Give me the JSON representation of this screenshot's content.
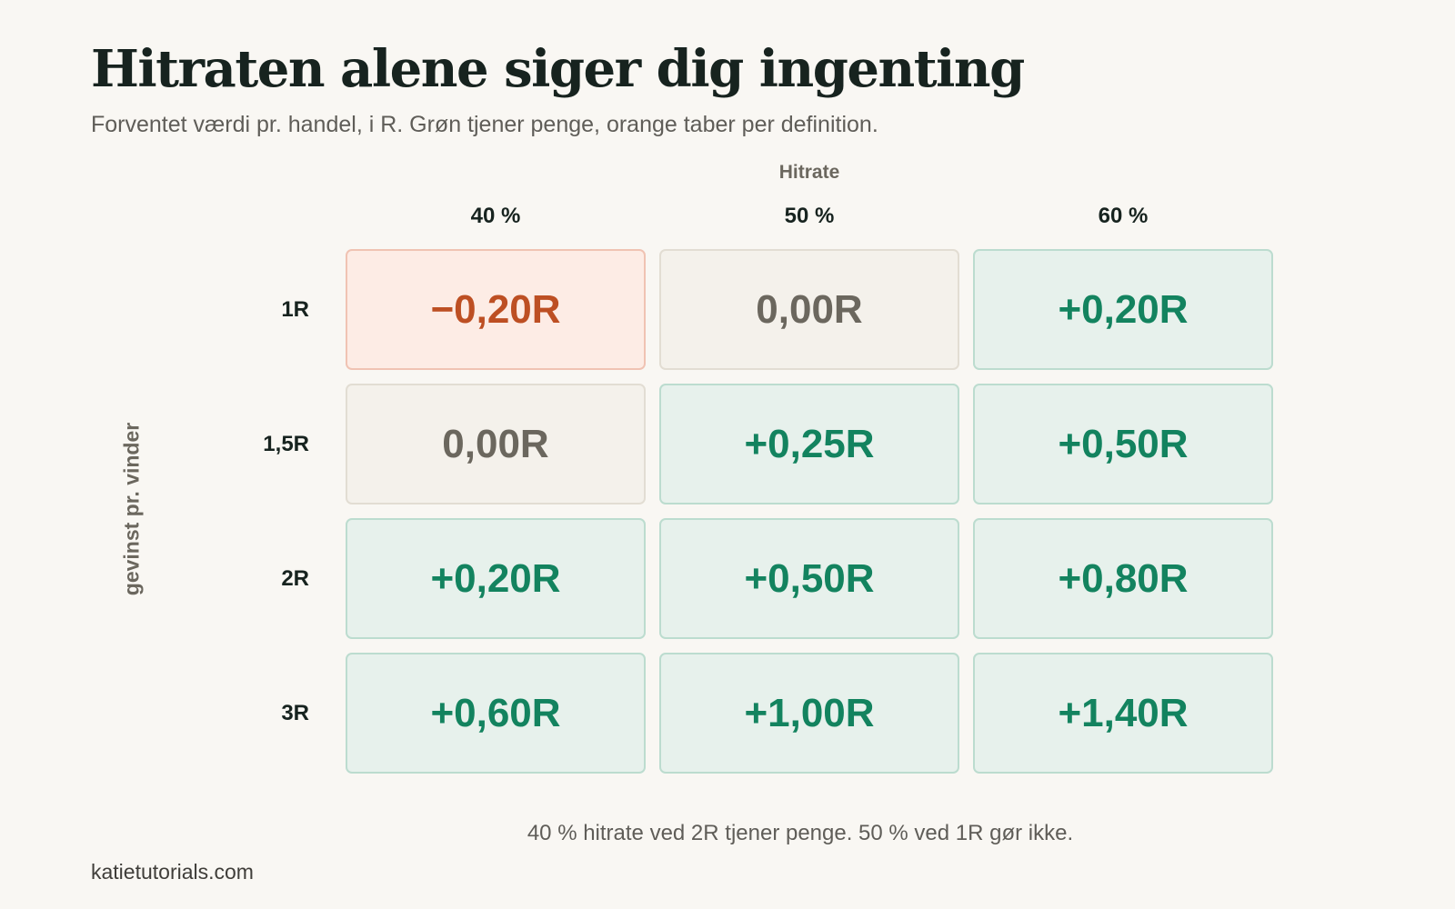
{
  "chart_data": {
    "type": "heatmap",
    "title": "Hitraten alene siger dig ingenting",
    "subtitle": "Forventet værdi pr. handel, i R. Grøn tjener penge, orange taber per definition.",
    "xlabel": "Hitrate",
    "ylabel": "gevinst pr. vinder",
    "x_categories": [
      "40 %",
      "50 %",
      "60 %"
    ],
    "y_categories": [
      "1R",
      "1,5R",
      "2R",
      "3R"
    ],
    "values": [
      [
        -0.2,
        0.0,
        0.2
      ],
      [
        0.0,
        0.25,
        0.5
      ],
      [
        0.2,
        0.5,
        0.8
      ],
      [
        0.6,
        1.0,
        1.4
      ]
    ],
    "cell_labels": [
      [
        "−0,20R",
        "0,00R",
        "+0,20R"
      ],
      [
        "0,00R",
        "+0,25R",
        "+0,50R"
      ],
      [
        "+0,20R",
        "+0,50R",
        "+0,80R"
      ],
      [
        "+0,60R",
        "+1,00R",
        "+1,40R"
      ]
    ],
    "colors": {
      "positive_text": "#13835f",
      "positive_fill": "#e7f1ec",
      "negative_text": "#bd4f23",
      "negative_fill": "#fdece5",
      "zero_text": "#6b675e",
      "zero_fill": "#f4f1eb"
    },
    "annotation": "40 % hitrate ved 2R tjener penge. 50 % ved 1R gør ikke.",
    "source": "katietutorials.com"
  }
}
